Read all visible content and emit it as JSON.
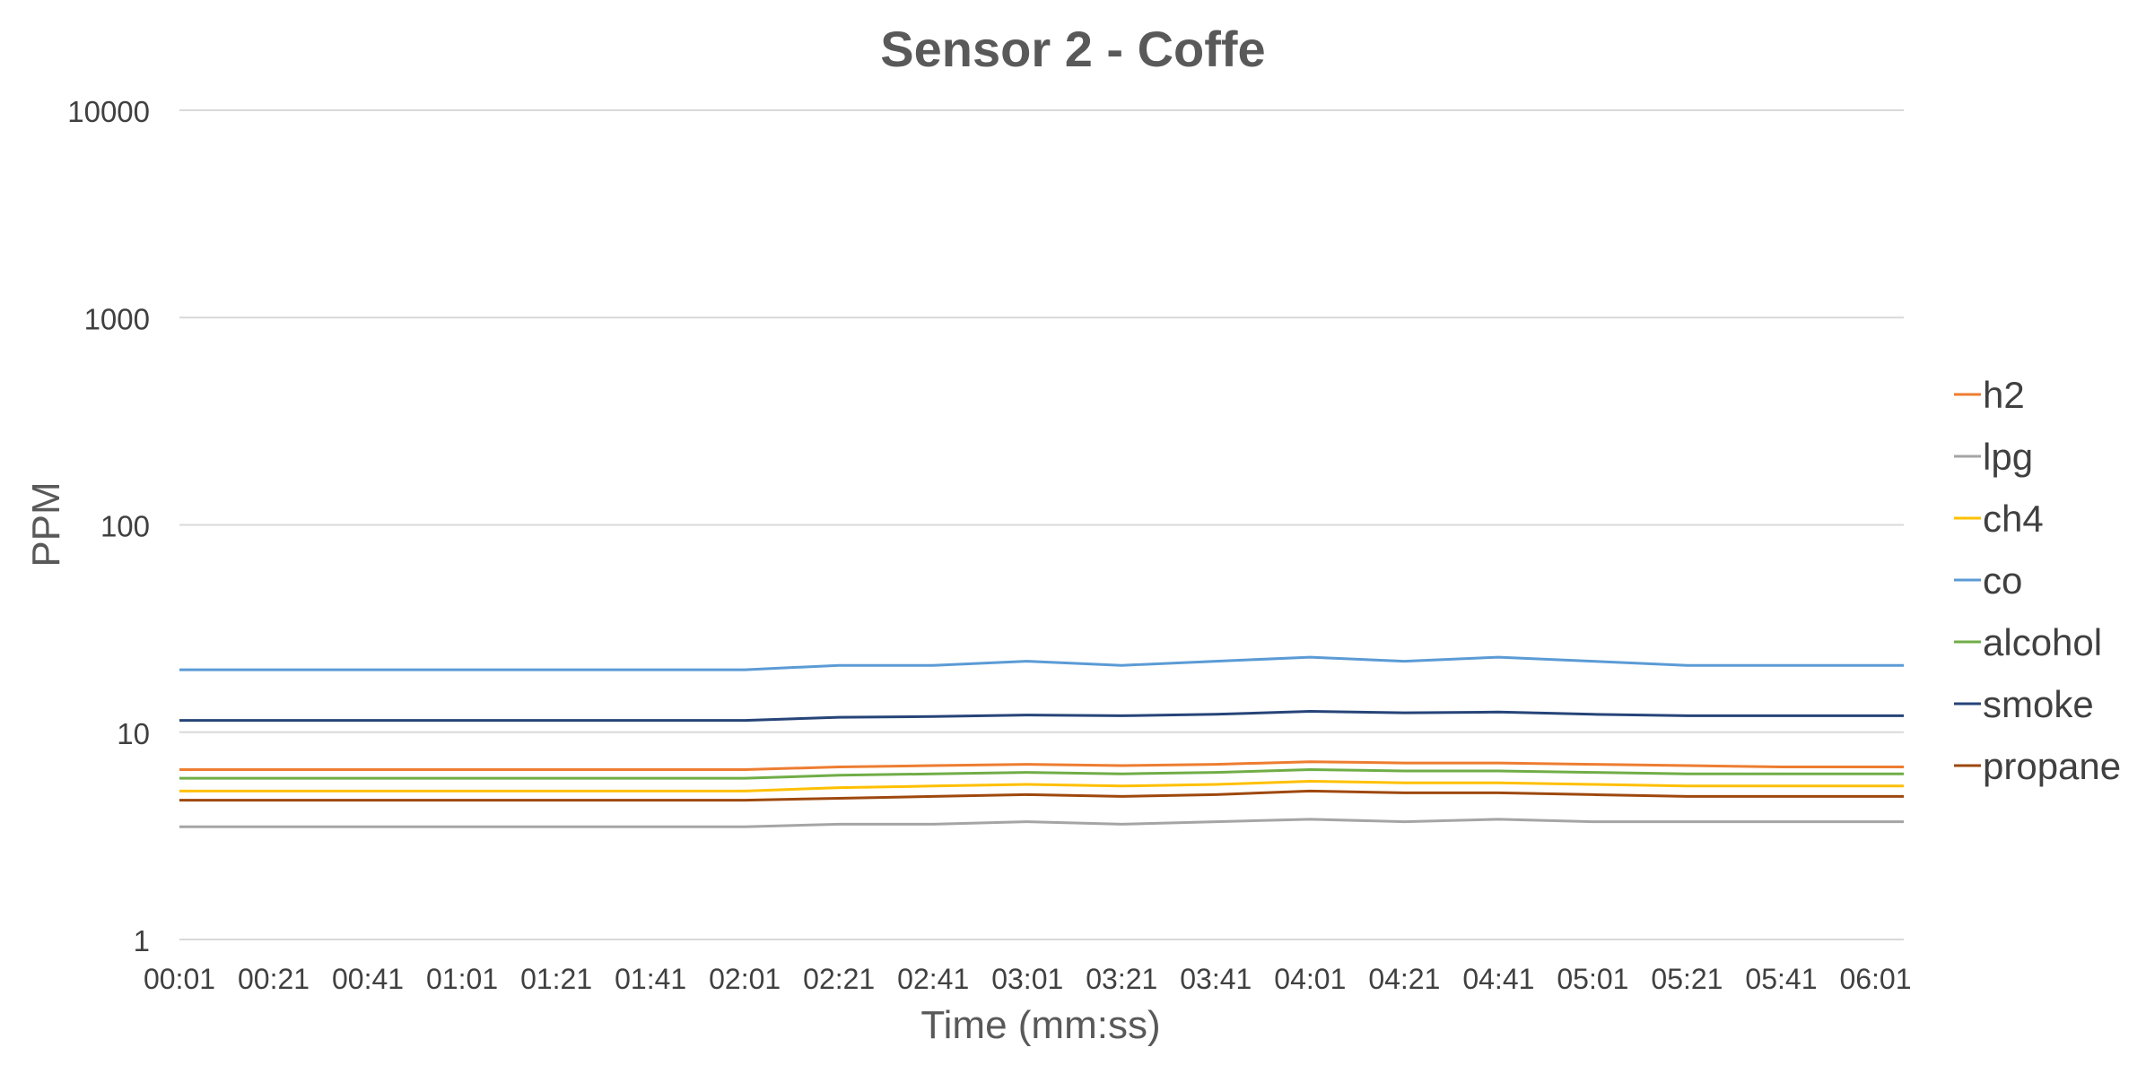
{
  "chart_data": {
    "type": "line",
    "title": "Sensor 2 - Coffe",
    "xlabel": "Time (mm:ss)",
    "ylabel": "PPM",
    "yscale": "log",
    "ylim": [
      1,
      10000
    ],
    "y_ticks": [
      "1",
      "10",
      "100",
      "1000",
      "10000"
    ],
    "x_tick_labels": [
      "00:01",
      "00:21",
      "00:41",
      "01:01",
      "01:21",
      "01:41",
      "02:01",
      "02:21",
      "02:41",
      "03:01",
      "03:21",
      "03:41",
      "04:01",
      "04:21",
      "04:41",
      "05:01",
      "05:21",
      "05:41",
      "06:01"
    ],
    "xlim": [
      "00:01",
      "06:07"
    ],
    "grid": "horizontal",
    "legend_position": "right",
    "series": [
      {
        "name": "h2",
        "color": "#ED7D31",
        "x": [
          "00:01",
          "00:41",
          "01:21",
          "02:01",
          "02:21",
          "02:41",
          "03:01",
          "03:21",
          "03:41",
          "04:01",
          "04:21",
          "04:41",
          "05:01",
          "05:21",
          "05:41",
          "06:07"
        ],
        "values": [
          6.6,
          6.6,
          6.6,
          6.6,
          6.8,
          6.9,
          7.0,
          6.9,
          7.0,
          7.2,
          7.1,
          7.1,
          7.0,
          6.9,
          6.8,
          6.8
        ]
      },
      {
        "name": "lpg",
        "color": "#A5A5A5",
        "x": [
          "00:01",
          "00:41",
          "01:21",
          "02:01",
          "02:21",
          "02:41",
          "03:01",
          "03:21",
          "03:41",
          "04:01",
          "04:21",
          "04:41",
          "05:01",
          "05:21",
          "05:41",
          "06:07"
        ],
        "values": [
          3.5,
          3.5,
          3.5,
          3.5,
          3.6,
          3.6,
          3.7,
          3.6,
          3.7,
          3.8,
          3.7,
          3.8,
          3.7,
          3.7,
          3.7,
          3.7
        ]
      },
      {
        "name": "ch4",
        "color": "#FFC000",
        "x": [
          "00:01",
          "00:41",
          "01:21",
          "02:01",
          "02:21",
          "02:41",
          "03:01",
          "03:21",
          "03:41",
          "04:01",
          "04:21",
          "04:41",
          "05:01",
          "05:21",
          "05:41",
          "06:07"
        ],
        "values": [
          5.2,
          5.2,
          5.2,
          5.2,
          5.4,
          5.5,
          5.6,
          5.5,
          5.6,
          5.8,
          5.7,
          5.7,
          5.6,
          5.5,
          5.5,
          5.5
        ]
      },
      {
        "name": "co",
        "color": "#5B9BD5",
        "x": [
          "00:01",
          "00:41",
          "01:21",
          "02:01",
          "02:21",
          "02:41",
          "03:01",
          "03:21",
          "03:41",
          "04:01",
          "04:21",
          "04:41",
          "05:01",
          "05:21",
          "05:41",
          "06:07"
        ],
        "values": [
          20,
          20,
          20,
          20,
          21,
          21,
          22,
          21,
          22,
          23,
          22,
          23,
          22,
          21,
          21,
          21
        ]
      },
      {
        "name": "alcohol",
        "color": "#70AD47",
        "x": [
          "00:01",
          "00:41",
          "01:21",
          "02:01",
          "02:21",
          "02:41",
          "03:01",
          "03:21",
          "03:41",
          "04:01",
          "04:21",
          "04:41",
          "05:01",
          "05:21",
          "05:41",
          "06:07"
        ],
        "values": [
          6.0,
          6.0,
          6.0,
          6.0,
          6.2,
          6.3,
          6.4,
          6.3,
          6.4,
          6.6,
          6.5,
          6.5,
          6.4,
          6.3,
          6.3,
          6.3
        ]
      },
      {
        "name": "smoke",
        "color": "#264478",
        "x": [
          "00:01",
          "00:41",
          "01:21",
          "02:01",
          "02:21",
          "02:41",
          "03:01",
          "03:21",
          "03:41",
          "04:01",
          "04:21",
          "04:41",
          "05:01",
          "05:21",
          "05:41",
          "06:07"
        ],
        "values": [
          11.4,
          11.4,
          11.4,
          11.4,
          11.8,
          11.9,
          12.1,
          12.0,
          12.2,
          12.6,
          12.4,
          12.5,
          12.2,
          12.0,
          12.0,
          12.0
        ]
      },
      {
        "name": "propane",
        "color": "#9E480E",
        "x": [
          "00:01",
          "00:41",
          "01:21",
          "02:01",
          "02:21",
          "02:41",
          "03:01",
          "03:21",
          "03:41",
          "04:01",
          "04:21",
          "04:41",
          "05:01",
          "05:21",
          "05:41",
          "06:07"
        ],
        "values": [
          4.7,
          4.7,
          4.7,
          4.7,
          4.8,
          4.9,
          5.0,
          4.9,
          5.0,
          5.2,
          5.1,
          5.1,
          5.0,
          4.9,
          4.9,
          4.9
        ]
      }
    ]
  }
}
